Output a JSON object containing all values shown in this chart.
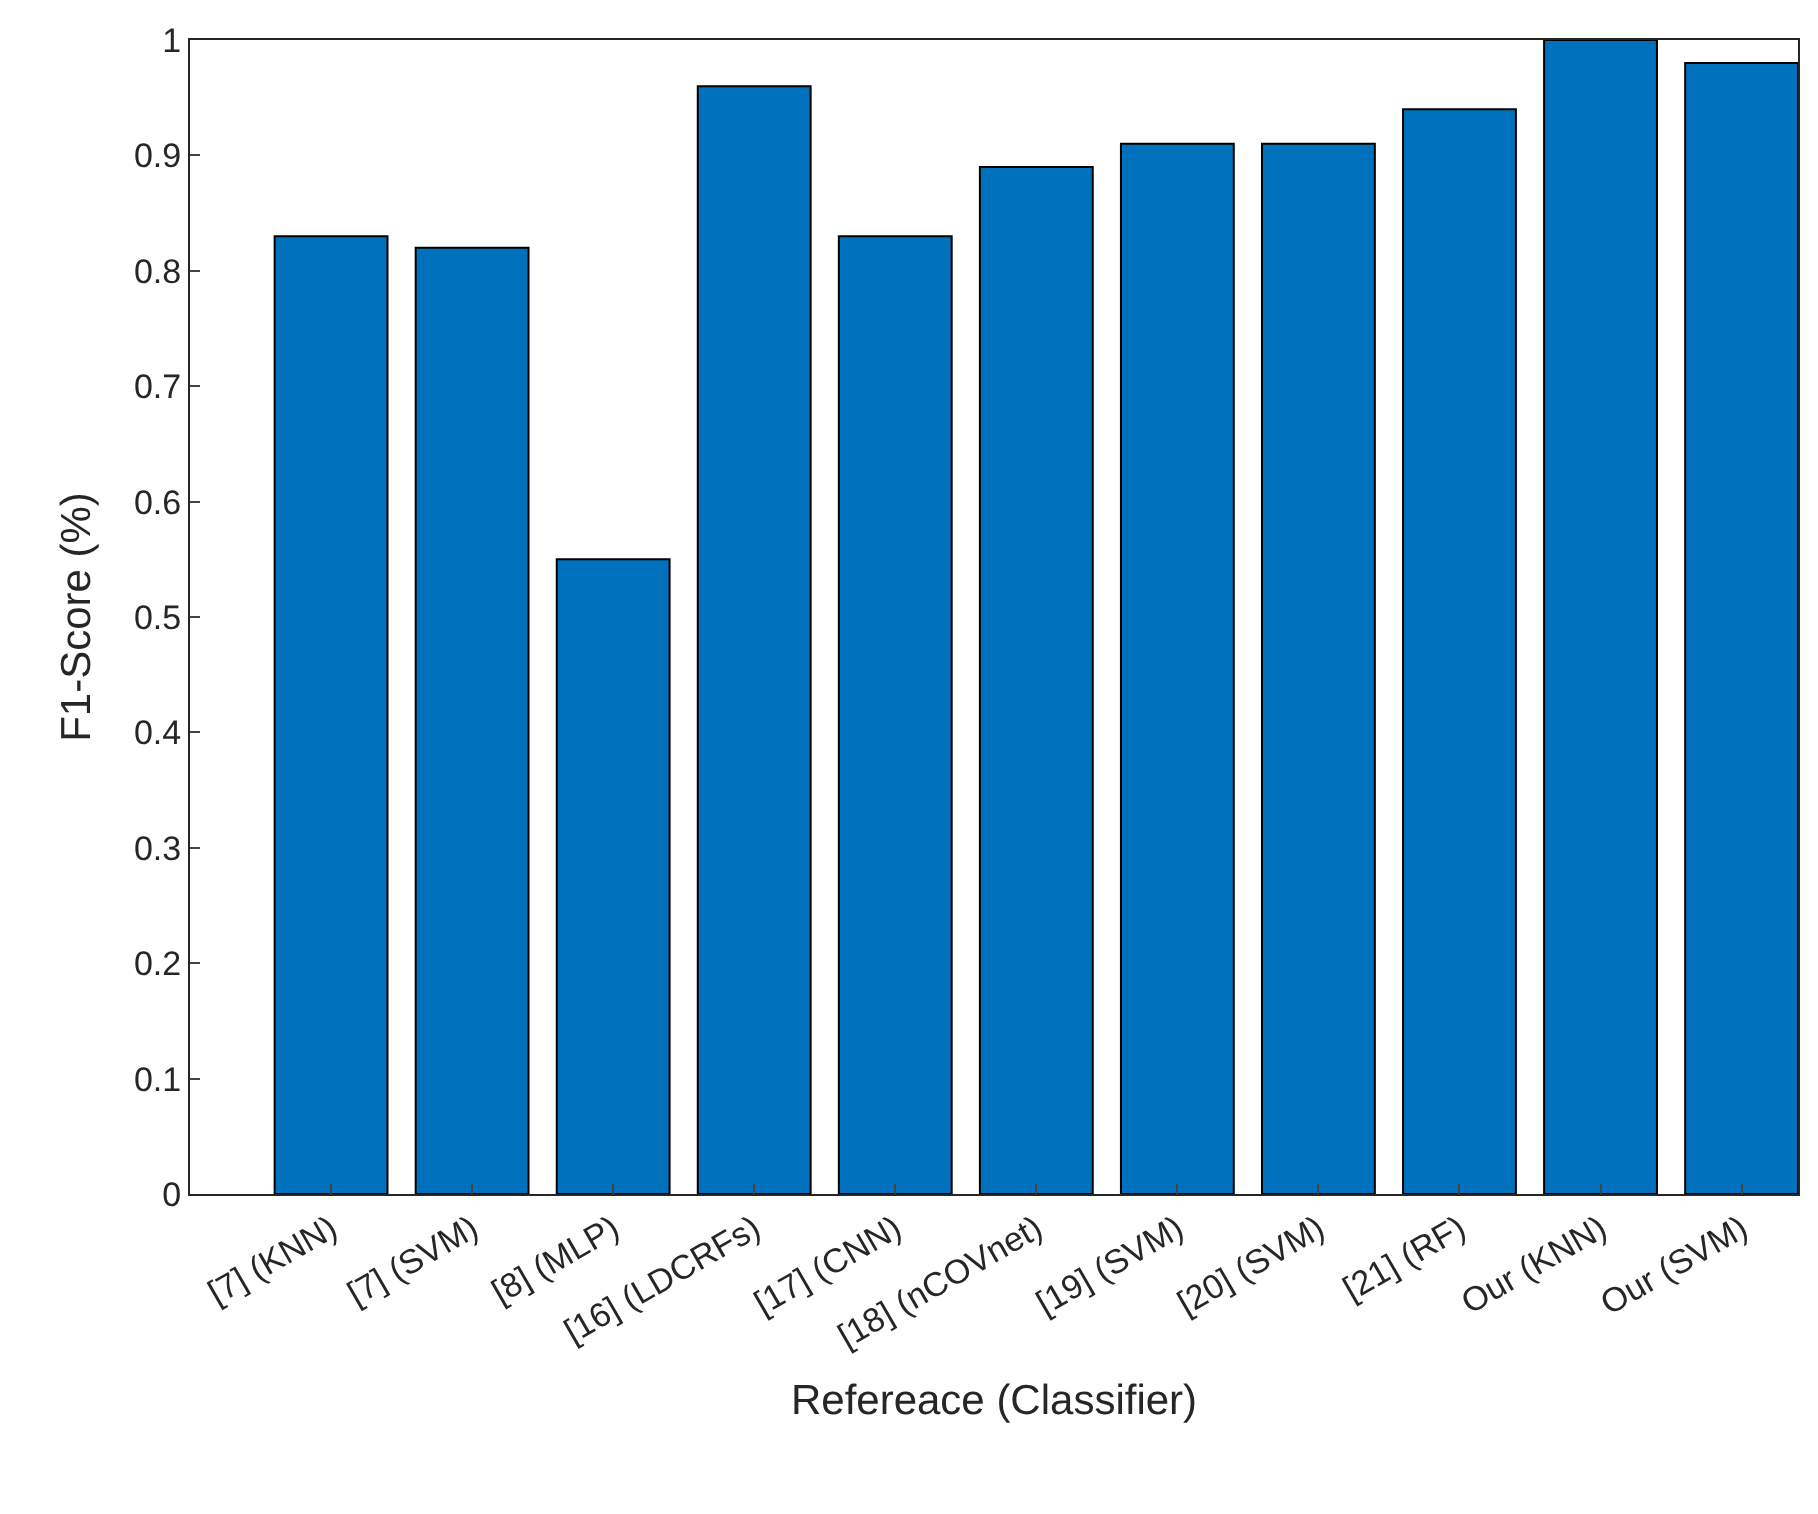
{
  "chart_data": {
    "type": "bar",
    "xlabel": "Refereace (Classifier)",
    "ylabel": "F1-Score (%)",
    "categories": [
      "[7] (KNN)",
      "[7] (SVM)",
      "[8] (MLP)",
      "[16] (LDCRFs)",
      "[17] (CNN)",
      "[18] (nCOVnet)",
      "[19] (SVM)",
      "[20] (SVM)",
      "[21] (RF)",
      "Our (KNN)",
      "Our (SVM)"
    ],
    "values": [
      0.83,
      0.82,
      0.55,
      0.96,
      0.83,
      0.89,
      0.91,
      0.91,
      0.94,
      1.0,
      0.98
    ],
    "color": "#0072bd",
    "ylim": [
      0,
      1
    ],
    "yticks": [
      0,
      0.1,
      0.2,
      0.3,
      0.4,
      0.5,
      0.6,
      0.7,
      0.8,
      0.9,
      1
    ],
    "legend": false
  }
}
